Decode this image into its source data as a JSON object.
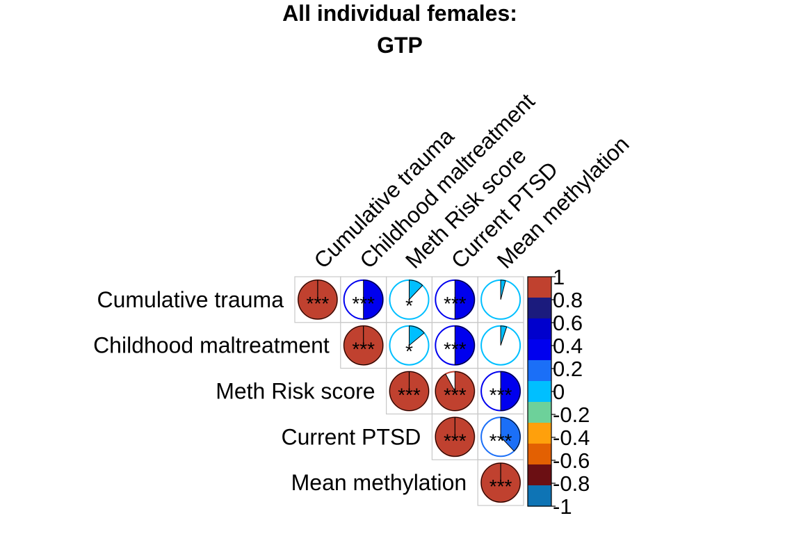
{
  "title": {
    "line1": "All individual females:",
    "line2": "GTP"
  },
  "chart_data": {
    "type": "heatmap",
    "subtype": "correlation-pie-upper-triangle",
    "variables": [
      "Cumulative trauma",
      "Childhood maltreatment",
      "Meth Risk score",
      "Current PTSD",
      "Mean methylation"
    ],
    "correlations": [
      [
        1.0,
        0.5,
        0.12,
        0.5,
        0.04
      ],
      [
        null,
        1.0,
        0.14,
        0.5,
        0.05
      ],
      [
        null,
        null,
        1.0,
        0.92,
        0.5
      ],
      [
        null,
        null,
        null,
        1.0,
        0.38
      ],
      [
        null,
        null,
        null,
        null,
        1.0
      ]
    ],
    "significance": [
      [
        "***",
        "***",
        "*",
        "***",
        ""
      ],
      [
        null,
        "***",
        "*",
        "***",
        ""
      ],
      [
        null,
        null,
        "***",
        "***",
        "***"
      ],
      [
        null,
        null,
        null,
        "***",
        "***"
      ],
      [
        null,
        null,
        null,
        null,
        "***"
      ]
    ],
    "colorbar": {
      "range": [
        -1,
        1
      ],
      "ticks": [
        "1",
        "0.8",
        "0.6",
        "0.4",
        "0.2",
        "0",
        "-0.2",
        "-0.4",
        "-0.6",
        "-0.8",
        "-1"
      ],
      "bins": [
        {
          "from": 0.8,
          "to": 1.0,
          "color": "#C0412F"
        },
        {
          "from": 0.6,
          "to": 0.8,
          "color": "#1B1B7D"
        },
        {
          "from": 0.4,
          "to": 0.6,
          "color": "#0000CD"
        },
        {
          "from": 0.2,
          "to": 0.4,
          "color": "#0000EE"
        },
        {
          "from": 0.0,
          "to": 0.2,
          "color": "#1B6FF7"
        },
        {
          "from": -0.2,
          "to": 0.0,
          "color": "#00BFFF"
        },
        {
          "from": -0.4,
          "to": -0.2,
          "color": "#6DD19A"
        },
        {
          "from": -0.6,
          "to": -0.4,
          "color": "#FFA00C"
        },
        {
          "from": -0.8,
          "to": -0.6,
          "color": "#E36002"
        },
        {
          "from": -1.0,
          "to": -0.8,
          "color": "#6B0F13"
        },
        {
          "from": -1.0,
          "to": -1.0,
          "color": "#0E74B5"
        }
      ]
    },
    "cell_colors": [
      [
        "#C0412F",
        "#0000EE",
        "#00BFFF",
        "#0000EE",
        "#00BFFF"
      ],
      [
        null,
        "#C0412F",
        "#00BFFF",
        "#0000EE",
        "#00BFFF"
      ],
      [
        null,
        null,
        "#C0412F",
        "#C0412F",
        "#0000EE"
      ],
      [
        null,
        null,
        null,
        "#C0412F",
        "#1B6FF7"
      ],
      [
        null,
        null,
        null,
        null,
        "#C0412F"
      ]
    ],
    "grid": true,
    "legend_position": "right"
  }
}
